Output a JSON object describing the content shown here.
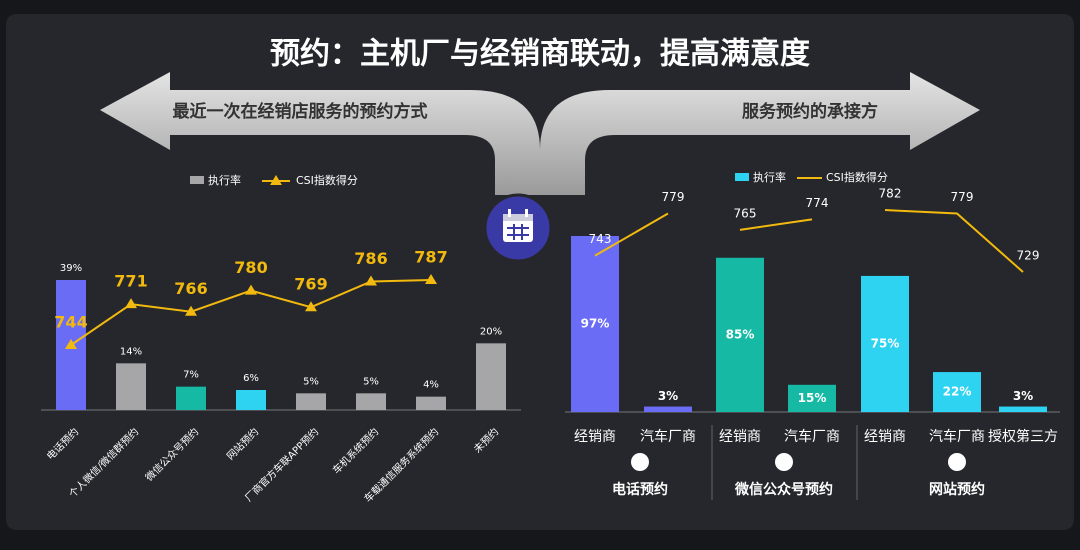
{
  "title": "预约：主机厂与经销商联动，提高满意度",
  "chart_data": [
    {
      "type": "combo",
      "subtitle": "最近一次在经销店服务的预约方式",
      "categories": [
        "电话预约",
        "个人微信/微信群预约",
        "微信公众号预约",
        "网站预约",
        "厂商官方车联APP预约",
        "车机系统预约",
        "车载通信服务系统预约",
        "未预约"
      ],
      "series": [
        {
          "name": "执行率",
          "color": "#a6a6a8",
          "colors": [
            "#6b6cf6",
            "#a6a6a8",
            "#16b9a4",
            "#2ed3f2",
            "#a6a6a8",
            "#a6a6a8",
            "#a6a6a8",
            "#a6a6a8"
          ],
          "values": [
            39,
            14,
            7,
            6,
            5,
            5,
            4,
            20
          ],
          "value_labels": [
            "39%",
            "14%",
            "7%",
            "6%",
            "5%",
            "5%",
            "4%",
            "20%"
          ]
        },
        {
          "name": "CSI指数得分",
          "color": "#f2b90f",
          "values": [
            744,
            771,
            766,
            780,
            769,
            786,
            787,
            null
          ]
        }
      ]
    },
    {
      "type": "grouped-combo",
      "subtitle": "服务预约的承接方",
      "legend": [
        {
          "name": "执行率",
          "color": "#2ed3f2"
        },
        {
          "name": "CSI指数得分",
          "color": "#f2b90f"
        }
      ],
      "groups": [
        {
          "name": "电话预约",
          "color": "#6b6cf6",
          "categories": [
            "经销商",
            "汽车厂商"
          ],
          "rate": [
            97,
            3
          ],
          "rate_labels": [
            "97%",
            "3%"
          ],
          "csi": [
            743,
            779
          ]
        },
        {
          "name": "微信公众号预约",
          "color": "#16b9a4",
          "categories": [
            "经销商",
            "汽车厂商"
          ],
          "rate": [
            85,
            15
          ],
          "rate_labels": [
            "85%",
            "15%"
          ],
          "csi": [
            765,
            774
          ]
        },
        {
          "name": "网站预约",
          "color": "#2ed3f2",
          "categories": [
            "经销商",
            "汽车厂商",
            "授权第三方"
          ],
          "rate": [
            75,
            22,
            3
          ],
          "rate_labels": [
            "75%",
            "22%",
            "3%"
          ],
          "csi": [
            782,
            779,
            729
          ]
        }
      ]
    }
  ]
}
